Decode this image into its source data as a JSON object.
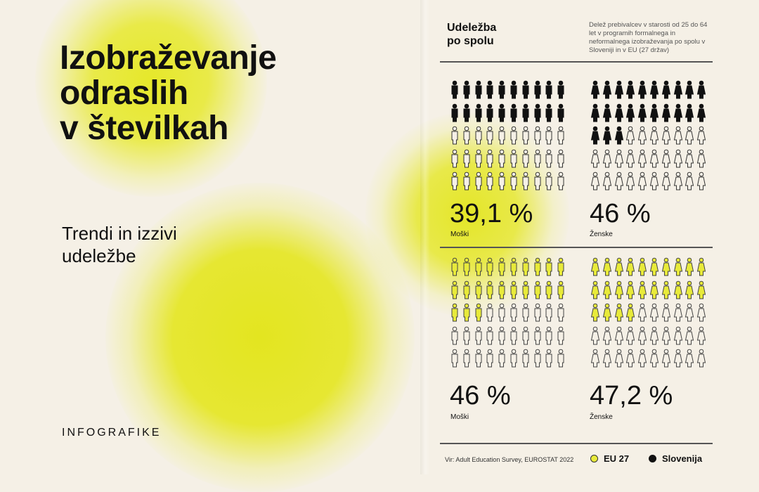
{
  "left": {
    "title_lines": [
      "Izobraževanje",
      "odraslih",
      "v številkah"
    ],
    "subtitle_lines": [
      "Trendi in izzivi",
      "udeležbe"
    ],
    "footer": "INFOGRAFIKE"
  },
  "right": {
    "heading_lines": [
      "Udeležba",
      "po spolu"
    ],
    "description": "Delež prebivalcev v starosti od 25 do 64 let v programih formalnega in neformalnega izobraževanja po spolu v Sloveniji in v EU (27 držav)",
    "panels": [
      {
        "region": "Slovenija",
        "gender": "male",
        "value_label": "39,1 %",
        "label": "Moški",
        "percent": 39.1
      },
      {
        "region": "Slovenija",
        "gender": "female",
        "value_label": "46 %",
        "label": "Ženske",
        "percent": 46
      },
      {
        "region": "EU 27",
        "gender": "male",
        "value_label": "46 %",
        "label": "Moški",
        "percent": 46
      },
      {
        "region": "EU 27",
        "gender": "female",
        "value_label": "47,2 %",
        "label": "Ženske",
        "percent": 47.2
      }
    ],
    "source": "Vir: Adult Education Survey, EUROSTAT 2022",
    "legend": [
      {
        "label": "EU 27",
        "color": "#e8ea3a"
      },
      {
        "label": "Slovenija",
        "color": "#111111"
      }
    ]
  }
}
